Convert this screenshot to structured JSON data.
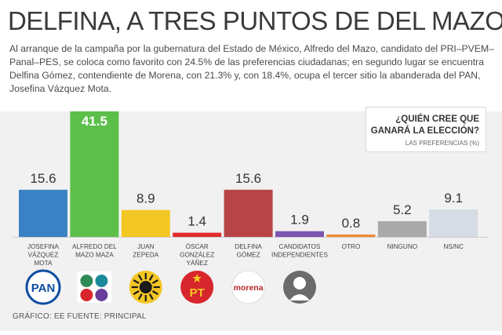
{
  "header": {
    "title": "DELFINA, A TRES  PUNTOS DE DEL MAZO",
    "body": "Al arranque de la campaña por la gubernatura del Estado de México, Alfredo del Mazo, candidato del PRI–PVEM–Panal–PES, se coloca como favorito con 24.5% de las preferencias ciudadanas; en segundo lugar se encuentra Delfina Gómez, contendiente de Morena, con 21.3% y, con 18.4%, ocupa el tercer sitio la abanderada del PAN, Josefina Vázquez Mota."
  },
  "question": {
    "line1": "¿QUIÉN CREE QUE",
    "line2": "GANARÁ LA ELECCIÓN?",
    "note": "LAS PREFERENCIAS (%)"
  },
  "footer": {
    "text": "GRÁFICO: EE  FUENTE: PRINCIPAL"
  },
  "chart_data": {
    "type": "bar",
    "title": "",
    "xlabel": "",
    "ylabel": "",
    "ylim": [
      0,
      41.5
    ],
    "categories": [
      [
        "JOSEFINA",
        "VÁZQUEZ",
        "MOTA"
      ],
      [
        "ALFREDO DEL",
        "MAZO MAZA"
      ],
      [
        "JUAN",
        "ZEPEDA"
      ],
      [
        "ÓSCAR",
        "GONZÁLEZ",
        "YÁÑEZ"
      ],
      [
        "DELFINA",
        "GÓMEZ"
      ],
      [
        "CANDIDATOS",
        "INDEPENDIENTES"
      ],
      [
        "OTRO"
      ],
      [
        "NINGUNO"
      ],
      [
        "NS/NC"
      ]
    ],
    "values": [
      15.6,
      41.5,
      8.9,
      1.4,
      15.6,
      1.9,
      0.8,
      5.2,
      9.1
    ],
    "value_labels": [
      "15.6",
      "41.5",
      "8.9",
      "1.4",
      "15.6",
      "1.9",
      "0.8",
      "5.2",
      "9.1"
    ],
    "colors": [
      "#3b82c4",
      "#5cbf4a",
      "#f3c623",
      "#e02d2d",
      "#b84447",
      "#7b55b0",
      "#f08a33",
      "#a9a9a9",
      "#d6dce3"
    ],
    "logos": [
      {
        "icon": "pan-logo-icon",
        "text": "PAN",
        "color": "#0f4ea3"
      },
      {
        "icon": "pri-coalition-logo-icon",
        "text": "",
        "color": "#2e8b57"
      },
      {
        "icon": "prd-sun-logo-icon",
        "text": "",
        "color": "#f3c623"
      },
      {
        "icon": "pt-logo-icon",
        "text": "PT",
        "color": "#d7262c"
      },
      {
        "icon": "morena-logo-icon",
        "text": "morena",
        "color": "#b5262a"
      },
      {
        "icon": "person-silhouette-icon",
        "text": "",
        "color": "#6b6b6b"
      }
    ],
    "grid": false,
    "legend": "none"
  }
}
